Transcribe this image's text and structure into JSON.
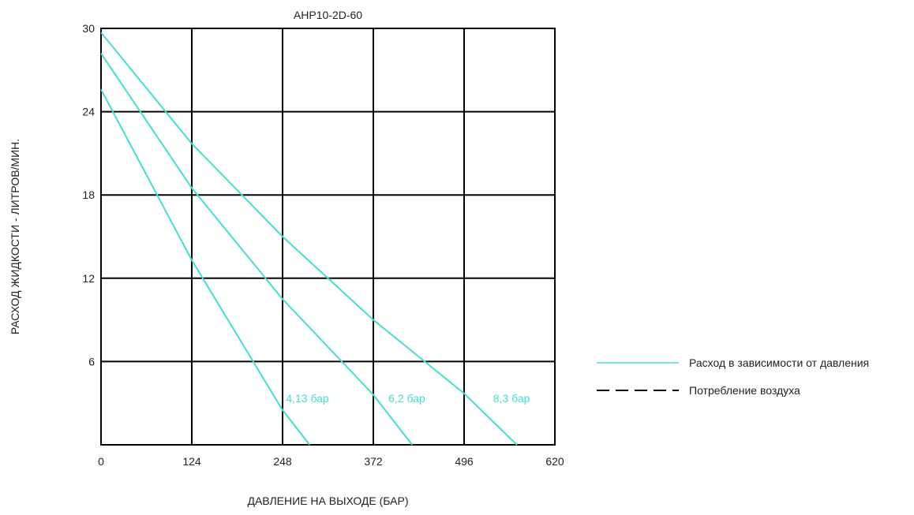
{
  "chart_data": {
    "type": "line",
    "title": "AHP10-2D-60",
    "xlabel": "ДАВЛЕНИЕ НА ВЫХОДЕ (БАР)",
    "ylabel": "РАСХОД ЖИДКОСТИ - ЛИТРОВ/МИН.",
    "xlim": [
      0,
      620
    ],
    "ylim": [
      0,
      30
    ],
    "x_ticks": [
      "0",
      "124",
      "248",
      "372",
      "496",
      "620"
    ],
    "y_ticks": [
      "6",
      "12",
      "18",
      "24",
      "30"
    ],
    "grid": true,
    "line_color": "#40e0d0",
    "series": [
      {
        "name": "4,13 бар",
        "x": [
          0,
          124,
          248,
          285
        ],
        "y": [
          25.6,
          13.3,
          2.5,
          0
        ]
      },
      {
        "name": "6,2 бар",
        "x": [
          0,
          124,
          248,
          372,
          425
        ],
        "y": [
          28.2,
          18.5,
          10.5,
          3.6,
          0
        ]
      },
      {
        "name": "8,3 бар",
        "x": [
          0,
          124,
          248,
          372,
          496,
          568
        ],
        "y": [
          29.7,
          21.7,
          15.0,
          9.0,
          3.7,
          0
        ]
      }
    ],
    "legend": {
      "position": "right",
      "items": [
        {
          "label": "Расход в зависимости от давления",
          "style": "solid",
          "color": "#40e0d0"
        },
        {
          "label": "Потребление воздуха",
          "style": "dashed",
          "color": "#000000"
        }
      ]
    }
  }
}
